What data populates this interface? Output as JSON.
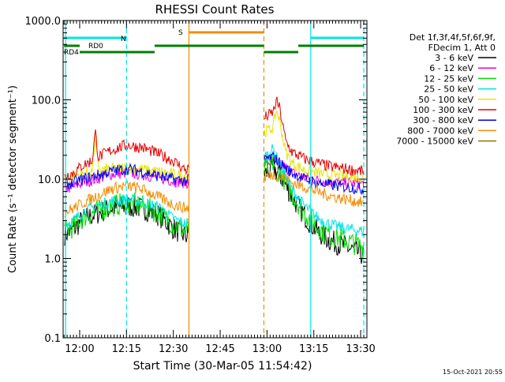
{
  "chart_data": {
    "type": "line",
    "title": "RHESSI Count Rates",
    "xlabel": "Start Time (30-Mar-05 11:54:42)",
    "ylabel": "Count Rate (s⁻¹ detector segment⁻¹)",
    "y_scale": "log",
    "ylim": [
      0.1,
      1000
    ],
    "xlim": [
      "11:54:42",
      "13:32:00"
    ],
    "x_ticks": [
      "12:00",
      "12:15",
      "12:30",
      "12:45",
      "13:00",
      "13:15",
      "13:30"
    ],
    "y_ticks": [
      "0.1",
      "1.0",
      "10.0",
      "100.0",
      "1000.0"
    ],
    "grid": false,
    "legend_position": "right",
    "legend_header": [
      "Det 1f,3f,4f,5f,6f,9f,",
      "FDecim 1, Att 0"
    ],
    "timestamp": "15-Oct-2021 20:55",
    "data_gap": [
      "12:35",
      "12:59"
    ],
    "series": [
      {
        "name": "3 - 6 keV",
        "color": "#000000",
        "x": [
          "11:55",
          "11:58",
          "12:01",
          "12:05",
          "12:10",
          "12:15",
          "12:20",
          "12:25",
          "12:30",
          "12:34",
          "13:02",
          "13:05",
          "13:08",
          "13:12",
          "13:16",
          "13:20",
          "13:25",
          "13:31"
        ],
        "values": [
          2.0,
          2.3,
          3.1,
          3.6,
          4.3,
          4.6,
          4.3,
          3.6,
          2.4,
          1.9,
          14,
          10,
          6,
          3.5,
          2.2,
          1.7,
          1.4,
          1.1
        ]
      },
      {
        "name": "6 - 12 keV",
        "color": "#e600e6",
        "x": [
          "11:55",
          "11:58",
          "12:01",
          "12:05",
          "12:10",
          "12:15",
          "12:20",
          "12:25",
          "12:30",
          "12:34",
          "13:02",
          "13:05",
          "13:08",
          "13:12",
          "13:16",
          "13:20",
          "13:25",
          "13:31"
        ],
        "values": [
          7.5,
          8.0,
          9.0,
          10.0,
          11.5,
          12.0,
          11.5,
          10.5,
          9.5,
          9.0,
          17,
          15,
          12,
          10.5,
          9.8,
          9.3,
          9.0,
          8.8
        ]
      },
      {
        "name": "12 - 25 keV",
        "color": "#00dd00",
        "x": [
          "11:55",
          "11:58",
          "12:01",
          "12:05",
          "12:10",
          "12:15",
          "12:20",
          "12:25",
          "12:30",
          "12:34",
          "13:02",
          "13:05",
          "13:08",
          "13:12",
          "13:16",
          "13:20",
          "13:25",
          "13:31"
        ],
        "values": [
          2.2,
          2.5,
          3.3,
          3.8,
          4.6,
          5.0,
          4.6,
          3.8,
          2.7,
          2.2,
          16,
          11,
          6.5,
          3.8,
          2.5,
          2.0,
          1.7,
          1.4
        ]
      },
      {
        "name": "25 - 50 keV",
        "color": "#00e5e5",
        "x": [
          "11:55",
          "11:58",
          "12:01",
          "12:05",
          "12:10",
          "12:15",
          "12:20",
          "12:25",
          "12:30",
          "12:34",
          "13:02",
          "13:05",
          "13:08",
          "13:12",
          "13:16",
          "13:20",
          "13:25",
          "13:31"
        ],
        "values": [
          2.7,
          3.0,
          3.8,
          4.5,
          5.3,
          5.6,
          5.2,
          4.5,
          3.2,
          2.7,
          24,
          13,
          7.5,
          4.6,
          3.3,
          2.7,
          2.4,
          2.2
        ]
      },
      {
        "name": "50 - 100 keV",
        "color": "#e6e600",
        "x": [
          "11:55",
          "11:58",
          "12:01",
          "12:04",
          "12:05",
          "12:06",
          "12:10",
          "12:15",
          "12:20",
          "12:25",
          "12:30",
          "12:34",
          "13:02",
          "13:03",
          "13:04",
          "13:06",
          "13:08",
          "13:12",
          "13:16",
          "13:20",
          "13:25",
          "13:31"
        ],
        "values": [
          10.5,
          11.0,
          11.5,
          12.5,
          35,
          13,
          13.5,
          13.8,
          13.3,
          12.5,
          11.5,
          11.0,
          45,
          75,
          55,
          22,
          16,
          13,
          12,
          11.2,
          10.8,
          10.5
        ]
      },
      {
        "name": "100 - 300 keV",
        "color": "#e60000",
        "x": [
          "11:55",
          "11:58",
          "12:01",
          "12:04",
          "12:05",
          "12:06",
          "12:10",
          "12:15",
          "12:20",
          "12:25",
          "12:30",
          "12:34",
          "13:02",
          "13:03",
          "13:04",
          "13:06",
          "13:08",
          "13:12",
          "13:16",
          "13:20",
          "13:25",
          "13:31"
        ],
        "values": [
          11.0,
          12.0,
          15.0,
          17,
          40,
          19,
          23,
          27,
          25,
          21,
          17,
          13,
          70,
          96,
          80,
          30,
          22,
          18,
          16,
          14.5,
          13.5,
          12.5
        ]
      },
      {
        "name": "300 - 800 keV",
        "color": "#0000e6",
        "x": [
          "11:55",
          "11:58",
          "12:01",
          "12:05",
          "12:10",
          "12:15",
          "12:20",
          "12:25",
          "12:30",
          "12:34",
          "13:02",
          "13:05",
          "13:08",
          "13:12",
          "13:16",
          "13:20",
          "13:25",
          "13:31"
        ],
        "values": [
          8.5,
          9.0,
          10.0,
          11.0,
          12.5,
          13.5,
          12.5,
          11.0,
          10.0,
          9.5,
          19,
          15,
          12,
          10,
          9,
          8.5,
          8.0,
          7.5
        ]
      },
      {
        "name": "800 - 7000 keV",
        "color": "#f28c00",
        "x": [
          "11:55",
          "11:58",
          "12:01",
          "12:05",
          "12:10",
          "12:15",
          "12:20",
          "12:25",
          "12:30",
          "12:34",
          "13:02",
          "13:05",
          "13:08",
          "13:12",
          "13:16",
          "13:20",
          "13:25",
          "13:31"
        ],
        "values": [
          3.8,
          4.3,
          5.0,
          6.0,
          7.5,
          8.3,
          7.5,
          6.0,
          4.8,
          4.3,
          11.5,
          10.5,
          9,
          8,
          7.0,
          6.2,
          5.6,
          5.0
        ]
      },
      {
        "name": "7000 - 15000 keV",
        "color": "#8b7500",
        "x": [],
        "values": []
      }
    ],
    "attenuator_bars": [
      {
        "label": "RD0",
        "color": "#007f00",
        "segments": [
          [
            "11:55",
            "12:00"
          ]
        ]
      },
      {
        "label": "RD4",
        "color": "#007f00",
        "segments": [
          [
            "12:00",
            "12:24"
          ],
          [
            "12:24",
            "12:59"
          ],
          [
            "12:59",
            "13:10"
          ],
          [
            "13:10",
            "13:31"
          ]
        ]
      },
      {
        "label": "N",
        "color": "#00e5e5",
        "segments": [
          [
            "11:55",
            "12:15"
          ],
          [
            "13:14",
            "13:31"
          ]
        ]
      },
      {
        "label": "S",
        "color": "#f28c00",
        "segments": [
          [
            "12:35",
            "12:59"
          ]
        ]
      }
    ],
    "vertical_markers": [
      {
        "time": "11:55:30",
        "color": "#00e5e5",
        "style": "solid"
      },
      {
        "time": "12:15",
        "color": "#00e5e5",
        "style": "dashed"
      },
      {
        "time": "12:35",
        "color": "#f28c00",
        "style": "solid"
      },
      {
        "time": "12:59",
        "color": "#f28c00",
        "style": "dashed"
      },
      {
        "time": "13:14",
        "color": "#00e5e5",
        "style": "solid"
      },
      {
        "time": "13:31",
        "color": "#00e5e5",
        "style": "dashed"
      }
    ]
  }
}
